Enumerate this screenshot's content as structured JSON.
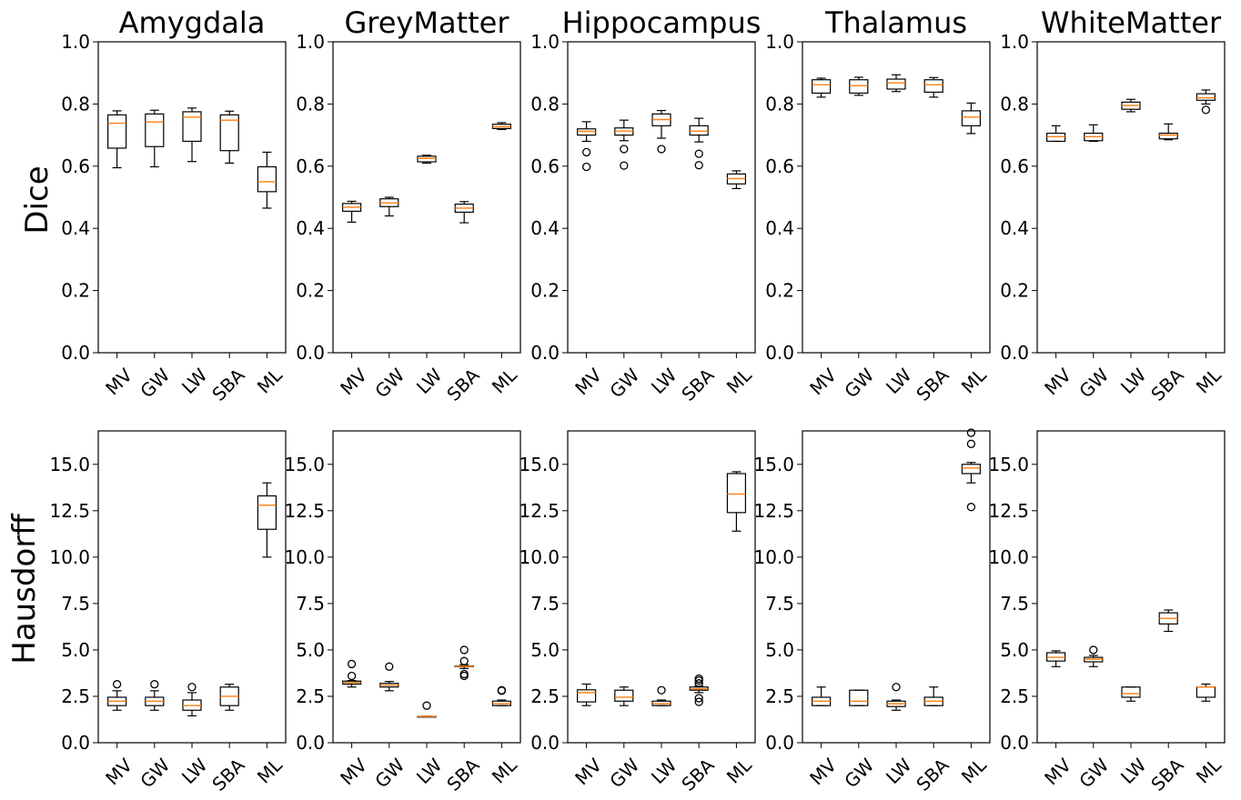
{
  "row_labels": [
    "Dice",
    "Hausdorff"
  ],
  "chart_data": [
    {
      "type": "box",
      "title": "Amygdala",
      "ylabel": "Dice",
      "ylim": [
        0,
        1
      ],
      "yticks": [
        "0.0",
        "0.2",
        "0.4",
        "0.6",
        "0.8",
        "1.0"
      ],
      "categories": [
        "MV",
        "GW",
        "LW",
        "SBA",
        "ML"
      ],
      "boxes": [
        {
          "whislo": 0.595,
          "q1": 0.658,
          "med": 0.738,
          "q3": 0.765,
          "whishi": 0.778,
          "fliers": []
        },
        {
          "whislo": 0.598,
          "q1": 0.663,
          "med": 0.742,
          "q3": 0.768,
          "whishi": 0.78,
          "fliers": []
        },
        {
          "whislo": 0.615,
          "q1": 0.68,
          "med": 0.758,
          "q3": 0.775,
          "whishi": 0.787,
          "fliers": []
        },
        {
          "whislo": 0.61,
          "q1": 0.65,
          "med": 0.748,
          "q3": 0.765,
          "whishi": 0.777,
          "fliers": []
        },
        {
          "whislo": 0.465,
          "q1": 0.518,
          "med": 0.55,
          "q3": 0.598,
          "whishi": 0.645,
          "fliers": []
        }
      ]
    },
    {
      "type": "box",
      "title": "GreyMatter",
      "ylabel": "",
      "ylim": [
        0,
        1
      ],
      "yticks": [
        "0.0",
        "0.2",
        "0.4",
        "0.6",
        "0.8",
        "1.0"
      ],
      "categories": [
        "MV",
        "GW",
        "LW",
        "SBA",
        "ML"
      ],
      "boxes": [
        {
          "whislo": 0.42,
          "q1": 0.455,
          "med": 0.468,
          "q3": 0.48,
          "whishi": 0.487,
          "fliers": []
        },
        {
          "whislo": 0.44,
          "q1": 0.47,
          "med": 0.482,
          "q3": 0.495,
          "whishi": 0.5,
          "fliers": []
        },
        {
          "whislo": 0.61,
          "q1": 0.614,
          "med": 0.625,
          "q3": 0.632,
          "whishi": 0.635,
          "fliers": []
        },
        {
          "whislo": 0.418,
          "q1": 0.452,
          "med": 0.465,
          "q3": 0.478,
          "whishi": 0.486,
          "fliers": []
        },
        {
          "whislo": 0.718,
          "q1": 0.721,
          "med": 0.727,
          "q3": 0.735,
          "whishi": 0.74,
          "fliers": []
        }
      ]
    },
    {
      "type": "box",
      "title": "Hippocampus",
      "ylabel": "",
      "ylim": [
        0,
        1
      ],
      "yticks": [
        "0.0",
        "0.2",
        "0.4",
        "0.6",
        "0.8",
        "1.0"
      ],
      "categories": [
        "MV",
        "GW",
        "LW",
        "SBA",
        "ML"
      ],
      "boxes": [
        {
          "whislo": 0.68,
          "q1": 0.7,
          "med": 0.712,
          "q3": 0.72,
          "whishi": 0.743,
          "fliers": [
            0.645,
            0.598
          ]
        },
        {
          "whislo": 0.682,
          "q1": 0.7,
          "med": 0.713,
          "q3": 0.723,
          "whishi": 0.748,
          "fliers": [
            0.655,
            0.602
          ]
        },
        {
          "whislo": 0.69,
          "q1": 0.73,
          "med": 0.75,
          "q3": 0.768,
          "whishi": 0.779,
          "fliers": [
            0.655
          ]
        },
        {
          "whislo": 0.678,
          "q1": 0.7,
          "med": 0.713,
          "q3": 0.73,
          "whishi": 0.754,
          "fliers": [
            0.64,
            0.603
          ]
        },
        {
          "whislo": 0.528,
          "q1": 0.543,
          "med": 0.56,
          "q3": 0.575,
          "whishi": 0.585,
          "fliers": []
        }
      ]
    },
    {
      "type": "box",
      "title": "Thalamus",
      "ylabel": "",
      "ylim": [
        0,
        1
      ],
      "yticks": [
        "0.0",
        "0.2",
        "0.4",
        "0.6",
        "0.8",
        "1.0"
      ],
      "categories": [
        "MV",
        "GW",
        "LW",
        "SBA",
        "ML"
      ],
      "boxes": [
        {
          "whislo": 0.822,
          "q1": 0.835,
          "med": 0.862,
          "q3": 0.878,
          "whishi": 0.883,
          "fliers": []
        },
        {
          "whislo": 0.828,
          "q1": 0.835,
          "med": 0.859,
          "q3": 0.878,
          "whishi": 0.886,
          "fliers": []
        },
        {
          "whislo": 0.84,
          "q1": 0.848,
          "med": 0.868,
          "q3": 0.88,
          "whishi": 0.894,
          "fliers": []
        },
        {
          "whislo": 0.822,
          "q1": 0.838,
          "med": 0.862,
          "q3": 0.878,
          "whishi": 0.885,
          "fliers": []
        },
        {
          "whislo": 0.705,
          "q1": 0.73,
          "med": 0.758,
          "q3": 0.778,
          "whishi": 0.803,
          "fliers": []
        }
      ]
    },
    {
      "type": "box",
      "title": "WhiteMatter",
      "ylabel": "",
      "ylim": [
        0,
        1
      ],
      "yticks": [
        "0.0",
        "0.2",
        "0.4",
        "0.6",
        "0.8",
        "1.0"
      ],
      "categories": [
        "MV",
        "GW",
        "LW",
        "SBA",
        "ML"
      ],
      "boxes": [
        {
          "whislo": 0.68,
          "q1": 0.68,
          "med": 0.695,
          "q3": 0.706,
          "whishi": 0.73,
          "fliers": []
        },
        {
          "whislo": 0.68,
          "q1": 0.682,
          "med": 0.695,
          "q3": 0.706,
          "whishi": 0.733,
          "fliers": []
        },
        {
          "whislo": 0.775,
          "q1": 0.783,
          "med": 0.795,
          "q3": 0.806,
          "whishi": 0.815,
          "fliers": []
        },
        {
          "whislo": 0.685,
          "q1": 0.688,
          "med": 0.7,
          "q3": 0.706,
          "whishi": 0.736,
          "fliers": []
        },
        {
          "whislo": 0.8,
          "q1": 0.812,
          "med": 0.82,
          "q3": 0.833,
          "whishi": 0.845,
          "fliers": [
            0.781
          ]
        }
      ]
    },
    {
      "type": "box",
      "title": "",
      "ylabel": "Hausdorff",
      "ylim": [
        0,
        16.8
      ],
      "yticks": [
        "0.0",
        "2.5",
        "5.0",
        "7.5",
        "10.0",
        "12.5",
        "15.0"
      ],
      "categories": [
        "MV",
        "GW",
        "LW",
        "SBA",
        "ML"
      ],
      "boxes": [
        {
          "whislo": 1.75,
          "q1": 2.0,
          "med": 2.24,
          "q3": 2.45,
          "whishi": 2.8,
          "fliers": [
            3.15
          ]
        },
        {
          "whislo": 1.75,
          "q1": 2.0,
          "med": 2.24,
          "q3": 2.45,
          "whishi": 2.8,
          "fliers": [
            3.15
          ]
        },
        {
          "whislo": 1.45,
          "q1": 1.75,
          "med": 2.0,
          "q3": 2.3,
          "whishi": 2.7,
          "fliers": [
            3.0
          ]
        },
        {
          "whislo": 1.75,
          "q1": 2.0,
          "med": 2.5,
          "q3": 3.0,
          "whishi": 3.15,
          "fliers": []
        },
        {
          "whislo": 10.0,
          "q1": 11.5,
          "med": 12.8,
          "q3": 13.3,
          "whishi": 14.0,
          "fliers": []
        }
      ]
    },
    {
      "type": "box",
      "title": "",
      "ylabel": "",
      "ylim": [
        0,
        16.8
      ],
      "yticks": [
        "0.0",
        "2.5",
        "5.0",
        "7.5",
        "10.0",
        "12.5",
        "15.0"
      ],
      "categories": [
        "MV",
        "GW",
        "LW",
        "SBA",
        "ML"
      ],
      "boxes": [
        {
          "whislo": 3.0,
          "q1": 3.16,
          "med": 3.25,
          "q3": 3.32,
          "whishi": 3.35,
          "fliers": [
            3.6,
            4.24
          ]
        },
        {
          "whislo": 2.8,
          "q1": 3.0,
          "med": 3.1,
          "q3": 3.2,
          "whishi": 3.3,
          "fliers": [
            4.1
          ]
        },
        {
          "whislo": 1.4,
          "q1": 1.41,
          "med": 1.414,
          "q3": 1.42,
          "whishi": 1.43,
          "fliers": [
            2.0
          ]
        },
        {
          "whislo": 4.0,
          "q1": 4.1,
          "med": 4.12,
          "q3": 4.14,
          "whishi": 4.2,
          "fliers": [
            3.6,
            3.7,
            4.4,
            5.0
          ]
        },
        {
          "whislo": 2.0,
          "q1": 2.0,
          "med": 2.1,
          "q3": 2.24,
          "whishi": 2.3,
          "fliers": [
            2.8,
            2.83
          ]
        }
      ]
    },
    {
      "type": "box",
      "title": "",
      "ylabel": "",
      "ylim": [
        0,
        16.8
      ],
      "yticks": [
        "0.0",
        "2.5",
        "5.0",
        "7.5",
        "10.0",
        "12.5",
        "15.0"
      ],
      "categories": [
        "MV",
        "GW",
        "LW",
        "SBA",
        "ML"
      ],
      "boxes": [
        {
          "whislo": 2.0,
          "q1": 2.2,
          "med": 2.7,
          "q3": 2.85,
          "whishi": 3.16,
          "fliers": []
        },
        {
          "whislo": 2.0,
          "q1": 2.24,
          "med": 2.45,
          "q3": 2.83,
          "whishi": 3.0,
          "fliers": []
        },
        {
          "whislo": 2.0,
          "q1": 2.0,
          "med": 2.1,
          "q3": 2.24,
          "whishi": 2.3,
          "fliers": [
            2.83
          ]
        },
        {
          "whislo": 2.7,
          "q1": 2.83,
          "med": 2.9,
          "q3": 3.0,
          "whishi": 3.05,
          "fliers": [
            2.2,
            2.4,
            3.2,
            3.35,
            3.45
          ]
        },
        {
          "whislo": 11.4,
          "q1": 12.4,
          "med": 13.4,
          "q3": 14.5,
          "whishi": 14.6,
          "fliers": []
        }
      ]
    },
    {
      "type": "box",
      "title": "",
      "ylabel": "",
      "ylim": [
        0,
        16.8
      ],
      "yticks": [
        "0.0",
        "2.5",
        "5.0",
        "7.5",
        "10.0",
        "12.5",
        "15.0"
      ],
      "categories": [
        "MV",
        "GW",
        "LW",
        "SBA",
        "ML"
      ],
      "boxes": [
        {
          "whislo": 2.0,
          "q1": 2.0,
          "med": 2.24,
          "q3": 2.45,
          "whishi": 3.0,
          "fliers": []
        },
        {
          "whislo": 2.0,
          "q1": 2.0,
          "med": 2.24,
          "q3": 2.83,
          "whishi": 2.83,
          "fliers": []
        },
        {
          "whislo": 1.75,
          "q1": 1.95,
          "med": 2.1,
          "q3": 2.24,
          "whishi": 2.3,
          "fliers": [
            3.0
          ]
        },
        {
          "whislo": 2.0,
          "q1": 2.0,
          "med": 2.24,
          "q3": 2.45,
          "whishi": 3.0,
          "fliers": []
        },
        {
          "whislo": 14.0,
          "q1": 14.5,
          "med": 14.8,
          "q3": 15.0,
          "whishi": 15.1,
          "fliers": [
            12.7,
            16.1,
            16.7
          ]
        }
      ]
    },
    {
      "type": "box",
      "title": "",
      "ylabel": "",
      "ylim": [
        0,
        16.8
      ],
      "yticks": [
        "0.0",
        "2.5",
        "5.0",
        "7.5",
        "10.0",
        "12.5",
        "15.0"
      ],
      "categories": [
        "MV",
        "GW",
        "LW",
        "SBA",
        "ML"
      ],
      "boxes": [
        {
          "whislo": 4.1,
          "q1": 4.4,
          "med": 4.6,
          "q3": 4.85,
          "whishi": 4.95,
          "fliers": []
        },
        {
          "whislo": 4.1,
          "q1": 4.36,
          "med": 4.5,
          "q3": 4.6,
          "whishi": 4.7,
          "fliers": [
            5.0
          ]
        },
        {
          "whislo": 2.24,
          "q1": 2.45,
          "med": 2.65,
          "q3": 3.0,
          "whishi": 3.0,
          "fliers": []
        },
        {
          "whislo": 6.0,
          "q1": 6.4,
          "med": 6.7,
          "q3": 7.0,
          "whishi": 7.15,
          "fliers": []
        },
        {
          "whislo": 2.24,
          "q1": 2.45,
          "med": 3.0,
          "q3": 3.0,
          "whishi": 3.16,
          "fliers": []
        }
      ]
    }
  ]
}
